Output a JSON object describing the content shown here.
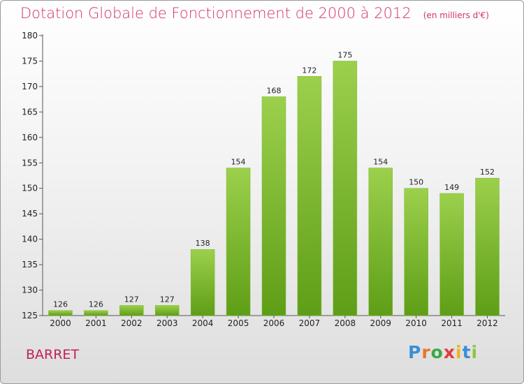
{
  "header": {
    "title": "Dotation Globale de Fonctionnement de 2000 à 2012",
    "unit": "(en milliers d'€)"
  },
  "footer": {
    "commune": "BARRET",
    "logo": {
      "letters": [
        "P",
        "r",
        "o",
        "x",
        "i",
        "t",
        "i"
      ],
      "colors": [
        "#3a8fd8",
        "#e8762a",
        "#3aa844",
        "#e23b3b",
        "#f0b21c",
        "#3a8fd8",
        "#8fc63f"
      ]
    }
  },
  "colors": {
    "bar_top": "#9cd04c",
    "bar_bottom": "#5e9e16",
    "axis": "#555555",
    "grid": "#cccccc"
  },
  "chart_data": {
    "type": "bar",
    "categories": [
      "2000",
      "2001",
      "2002",
      "2003",
      "2004",
      "2005",
      "2006",
      "2007",
      "2008",
      "2009",
      "2010",
      "2011",
      "2012"
    ],
    "values": [
      126,
      126,
      127,
      127,
      138,
      154,
      168,
      172,
      175,
      154,
      150,
      149,
      152
    ],
    "ylim": [
      125,
      180
    ],
    "yticks": [
      125,
      130,
      135,
      140,
      145,
      150,
      155,
      160,
      165,
      170,
      175,
      180
    ],
    "grid": false,
    "legend": "none"
  }
}
